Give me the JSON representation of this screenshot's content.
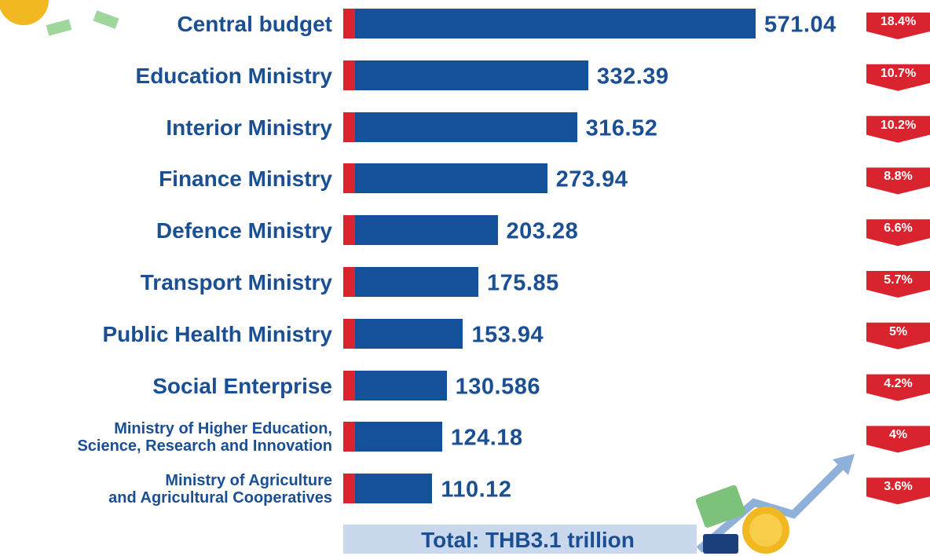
{
  "chart_data": {
    "type": "bar",
    "orientation": "horizontal",
    "title": "Total: THB3.1 trillion",
    "categories": [
      "Central budget",
      "Education Ministry",
      "Interior Ministry",
      "Finance Ministry",
      "Defence Ministry",
      "Transport Ministry",
      "Public Health Ministry",
      "Social Enterprise",
      "Ministry of Higher Education,\nScience, Research and Innovation",
      "Ministry of Agriculture\nand Agricultural Cooperatives"
    ],
    "values": [
      571.04,
      332.39,
      316.52,
      273.94,
      203.28,
      175.85,
      153.94,
      130.586,
      124.18,
      110.12
    ],
    "color": "#15509b",
    "percentages": [
      18.4,
      10.7,
      10.2,
      8.8,
      6.6,
      5.7,
      5,
      4.2,
      4,
      3.6
    ],
    "percentage_labels": [
      "18.4%",
      "10.7%",
      "10.2%",
      "8.8%",
      "6.6%",
      "5.7%",
      "5%",
      "4.2%",
      "4%",
      "3.6%"
    ],
    "percentage_color": "#d9232e"
  }
}
